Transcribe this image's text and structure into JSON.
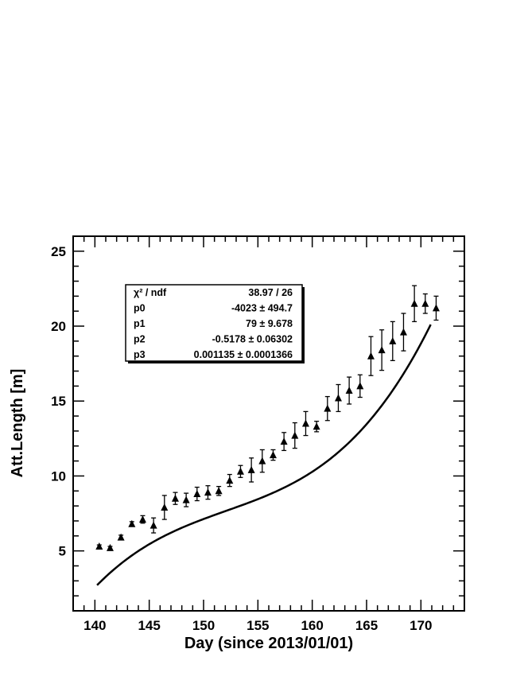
{
  "chart_data": {
    "type": "scatter",
    "xlabel": "Day (since 2013/01/01)",
    "ylabel": "Att.Length [m]",
    "xlim": [
      138,
      174
    ],
    "ylim": [
      1,
      26
    ],
    "x_ticks": [
      140,
      145,
      150,
      155,
      160,
      165,
      170
    ],
    "y_ticks": [
      5,
      10,
      15,
      20,
      25
    ],
    "grid": false,
    "marker": "triangle",
    "series": [
      {
        "x": [
          140.4,
          141.4,
          142.4,
          143.4,
          144.4,
          145.4,
          146.4,
          147.4,
          148.4,
          149.4,
          150.4,
          151.4,
          152.4,
          153.4,
          154.4,
          155.4,
          156.4,
          157.4,
          158.4,
          159.4,
          160.4,
          161.4,
          162.4,
          163.4,
          164.4,
          165.4,
          166.4,
          167.4,
          168.4,
          169.4,
          170.4,
          171.4
        ],
        "y": [
          5.3,
          5.2,
          5.9,
          6.8,
          7.1,
          6.7,
          7.9,
          8.5,
          8.4,
          8.8,
          8.9,
          9.0,
          9.7,
          10.3,
          10.4,
          11.0,
          11.4,
          12.3,
          12.7,
          13.5,
          13.3,
          14.5,
          15.2,
          15.7,
          16.0,
          18.0,
          18.4,
          19.0,
          19.6,
          21.5,
          21.5,
          21.2
        ],
        "y_err": [
          0.1,
          0.1,
          0.15,
          0.15,
          0.25,
          0.5,
          0.8,
          0.4,
          0.45,
          0.45,
          0.45,
          0.3,
          0.4,
          0.4,
          0.8,
          0.75,
          0.35,
          0.6,
          0.85,
          0.8,
          0.35,
          0.8,
          0.9,
          0.9,
          0.75,
          1.3,
          1.35,
          1.3,
          1.25,
          1.2,
          0.65,
          0.8
        ]
      }
    ],
    "fit": {
      "function": "pol3",
      "x_range": [
        140.2,
        170.9
      ],
      "stats_rows": [
        {
          "label": "χ² / ndf",
          "value": "38.97 / 26"
        },
        {
          "label": "p0",
          "value": "-4023 ± 494.7"
        },
        {
          "label": "p1",
          "value": "79 ± 9.678"
        },
        {
          "label": "p2",
          "value": "-0.5178 ± 0.06302"
        },
        {
          "label": "p3",
          "value": "0.001135 ± 0.0001366"
        }
      ]
    }
  }
}
